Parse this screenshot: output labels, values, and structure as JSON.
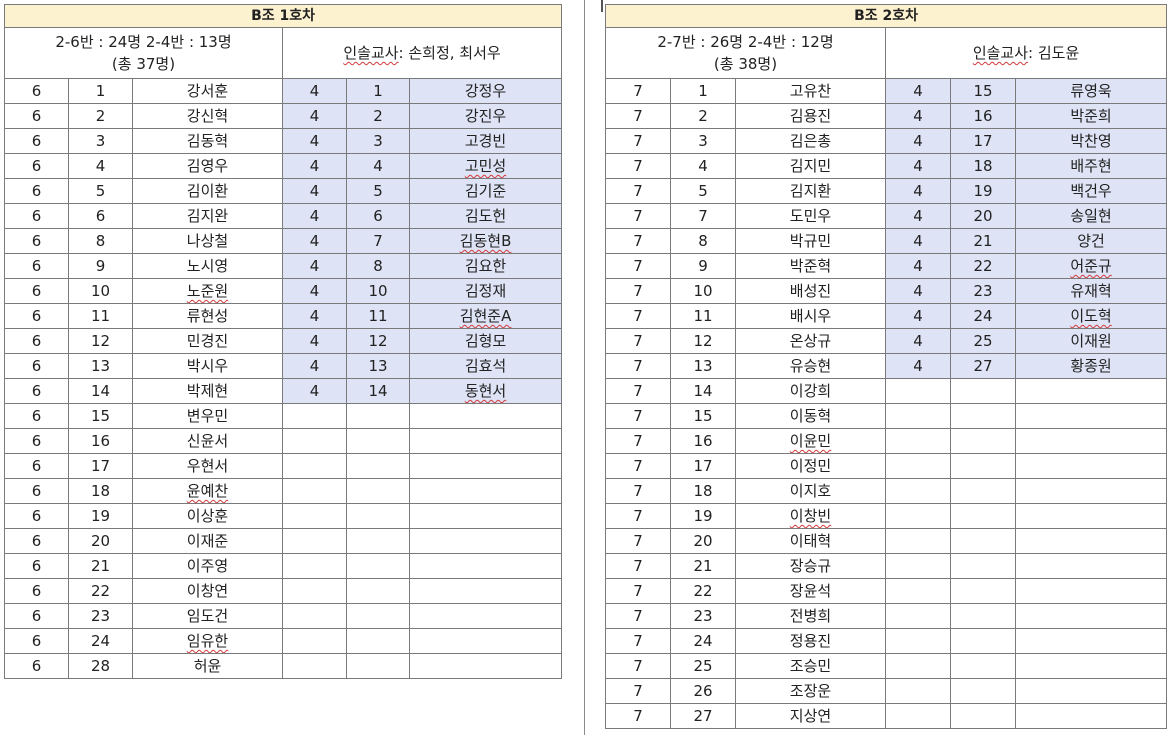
{
  "group1": {
    "title": "B조 1호차",
    "info_line1": "2-6반 : 24명 2-4반 : 13명",
    "info_line2": "(총 37명)",
    "teacher_label": "인솔교사",
    "teacher_names": ": 손희정, 최서우",
    "left_students": [
      {
        "cls": "6",
        "no": "1",
        "name": "강서훈"
      },
      {
        "cls": "6",
        "no": "2",
        "name": "강신혁"
      },
      {
        "cls": "6",
        "no": "3",
        "name": "김동혁"
      },
      {
        "cls": "6",
        "no": "4",
        "name": "김영우"
      },
      {
        "cls": "6",
        "no": "5",
        "name": "김이환"
      },
      {
        "cls": "6",
        "no": "6",
        "name": "김지완"
      },
      {
        "cls": "6",
        "no": "8",
        "name": "나상철"
      },
      {
        "cls": "6",
        "no": "9",
        "name": "노시영"
      },
      {
        "cls": "6",
        "no": "10",
        "name": "노준원"
      },
      {
        "cls": "6",
        "no": "11",
        "name": "류현성"
      },
      {
        "cls": "6",
        "no": "12",
        "name": "민경진"
      },
      {
        "cls": "6",
        "no": "13",
        "name": "박시우"
      },
      {
        "cls": "6",
        "no": "14",
        "name": "박제현"
      },
      {
        "cls": "6",
        "no": "15",
        "name": "변우민"
      },
      {
        "cls": "6",
        "no": "16",
        "name": "신윤서"
      },
      {
        "cls": "6",
        "no": "17",
        "name": "우현서"
      },
      {
        "cls": "6",
        "no": "18",
        "name": "윤예찬"
      },
      {
        "cls": "6",
        "no": "19",
        "name": "이상훈"
      },
      {
        "cls": "6",
        "no": "20",
        "name": "이재준"
      },
      {
        "cls": "6",
        "no": "21",
        "name": "이주영"
      },
      {
        "cls": "6",
        "no": "22",
        "name": "이창연"
      },
      {
        "cls": "6",
        "no": "23",
        "name": "임도건"
      },
      {
        "cls": "6",
        "no": "24",
        "name": "임유한"
      },
      {
        "cls": "6",
        "no": "28",
        "name": "허윤"
      }
    ],
    "right_students": [
      {
        "cls": "4",
        "no": "1",
        "name": "강정우"
      },
      {
        "cls": "4",
        "no": "2",
        "name": "강진우"
      },
      {
        "cls": "4",
        "no": "3",
        "name": "고경빈"
      },
      {
        "cls": "4",
        "no": "4",
        "name": "고민성"
      },
      {
        "cls": "4",
        "no": "5",
        "name": "김기준"
      },
      {
        "cls": "4",
        "no": "6",
        "name": "김도헌"
      },
      {
        "cls": "4",
        "no": "7",
        "name": "김동현B"
      },
      {
        "cls": "4",
        "no": "8",
        "name": "김요한"
      },
      {
        "cls": "4",
        "no": "10",
        "name": "김정재"
      },
      {
        "cls": "4",
        "no": "11",
        "name": "김현준A"
      },
      {
        "cls": "4",
        "no": "12",
        "name": "김형모"
      },
      {
        "cls": "4",
        "no": "13",
        "name": "김효석"
      },
      {
        "cls": "4",
        "no": "14",
        "name": "동현서"
      }
    ]
  },
  "group2": {
    "title": "B조 2호차",
    "info_line1": "2-7반 : 26명 2-4반 : 12명",
    "info_line2": "(총 38명)",
    "teacher_label": "인솔교사",
    "teacher_names": ": 김도윤",
    "left_students": [
      {
        "cls": "7",
        "no": "1",
        "name": "고유찬"
      },
      {
        "cls": "7",
        "no": "2",
        "name": "김용진"
      },
      {
        "cls": "7",
        "no": "3",
        "name": "김은총"
      },
      {
        "cls": "7",
        "no": "4",
        "name": "김지민"
      },
      {
        "cls": "7",
        "no": "5",
        "name": "김지환"
      },
      {
        "cls": "7",
        "no": "7",
        "name": "도민우"
      },
      {
        "cls": "7",
        "no": "8",
        "name": "박규민"
      },
      {
        "cls": "7",
        "no": "9",
        "name": "박준혁"
      },
      {
        "cls": "7",
        "no": "10",
        "name": "배성진"
      },
      {
        "cls": "7",
        "no": "11",
        "name": "배시우"
      },
      {
        "cls": "7",
        "no": "12",
        "name": "온상규"
      },
      {
        "cls": "7",
        "no": "13",
        "name": "유승현"
      },
      {
        "cls": "7",
        "no": "14",
        "name": "이강희"
      },
      {
        "cls": "7",
        "no": "15",
        "name": "이동혁"
      },
      {
        "cls": "7",
        "no": "16",
        "name": "이윤민"
      },
      {
        "cls": "7",
        "no": "17",
        "name": "이정민"
      },
      {
        "cls": "7",
        "no": "18",
        "name": "이지호"
      },
      {
        "cls": "7",
        "no": "19",
        "name": "이창빈"
      },
      {
        "cls": "7",
        "no": "20",
        "name": "이태혁"
      },
      {
        "cls": "7",
        "no": "21",
        "name": "장승규"
      },
      {
        "cls": "7",
        "no": "22",
        "name": "장윤석"
      },
      {
        "cls": "7",
        "no": "23",
        "name": "전병희"
      },
      {
        "cls": "7",
        "no": "24",
        "name": "정용진"
      },
      {
        "cls": "7",
        "no": "25",
        "name": "조승민"
      },
      {
        "cls": "7",
        "no": "26",
        "name": "조장운"
      },
      {
        "cls": "7",
        "no": "27",
        "name": "지상연"
      }
    ],
    "right_students": [
      {
        "cls": "4",
        "no": "15",
        "name": "류영욱"
      },
      {
        "cls": "4",
        "no": "16",
        "name": "박준희"
      },
      {
        "cls": "4",
        "no": "17",
        "name": "박찬영"
      },
      {
        "cls": "4",
        "no": "18",
        "name": "배주현"
      },
      {
        "cls": "4",
        "no": "19",
        "name": "백건우"
      },
      {
        "cls": "4",
        "no": "20",
        "name": "송일현"
      },
      {
        "cls": "4",
        "no": "21",
        "name": "양건"
      },
      {
        "cls": "4",
        "no": "22",
        "name": "어준규"
      },
      {
        "cls": "4",
        "no": "23",
        "name": "유재혁"
      },
      {
        "cls": "4",
        "no": "24",
        "name": "이도혁"
      },
      {
        "cls": "4",
        "no": "25",
        "name": "이재원"
      },
      {
        "cls": "4",
        "no": "27",
        "name": "황종원"
      }
    ]
  }
}
